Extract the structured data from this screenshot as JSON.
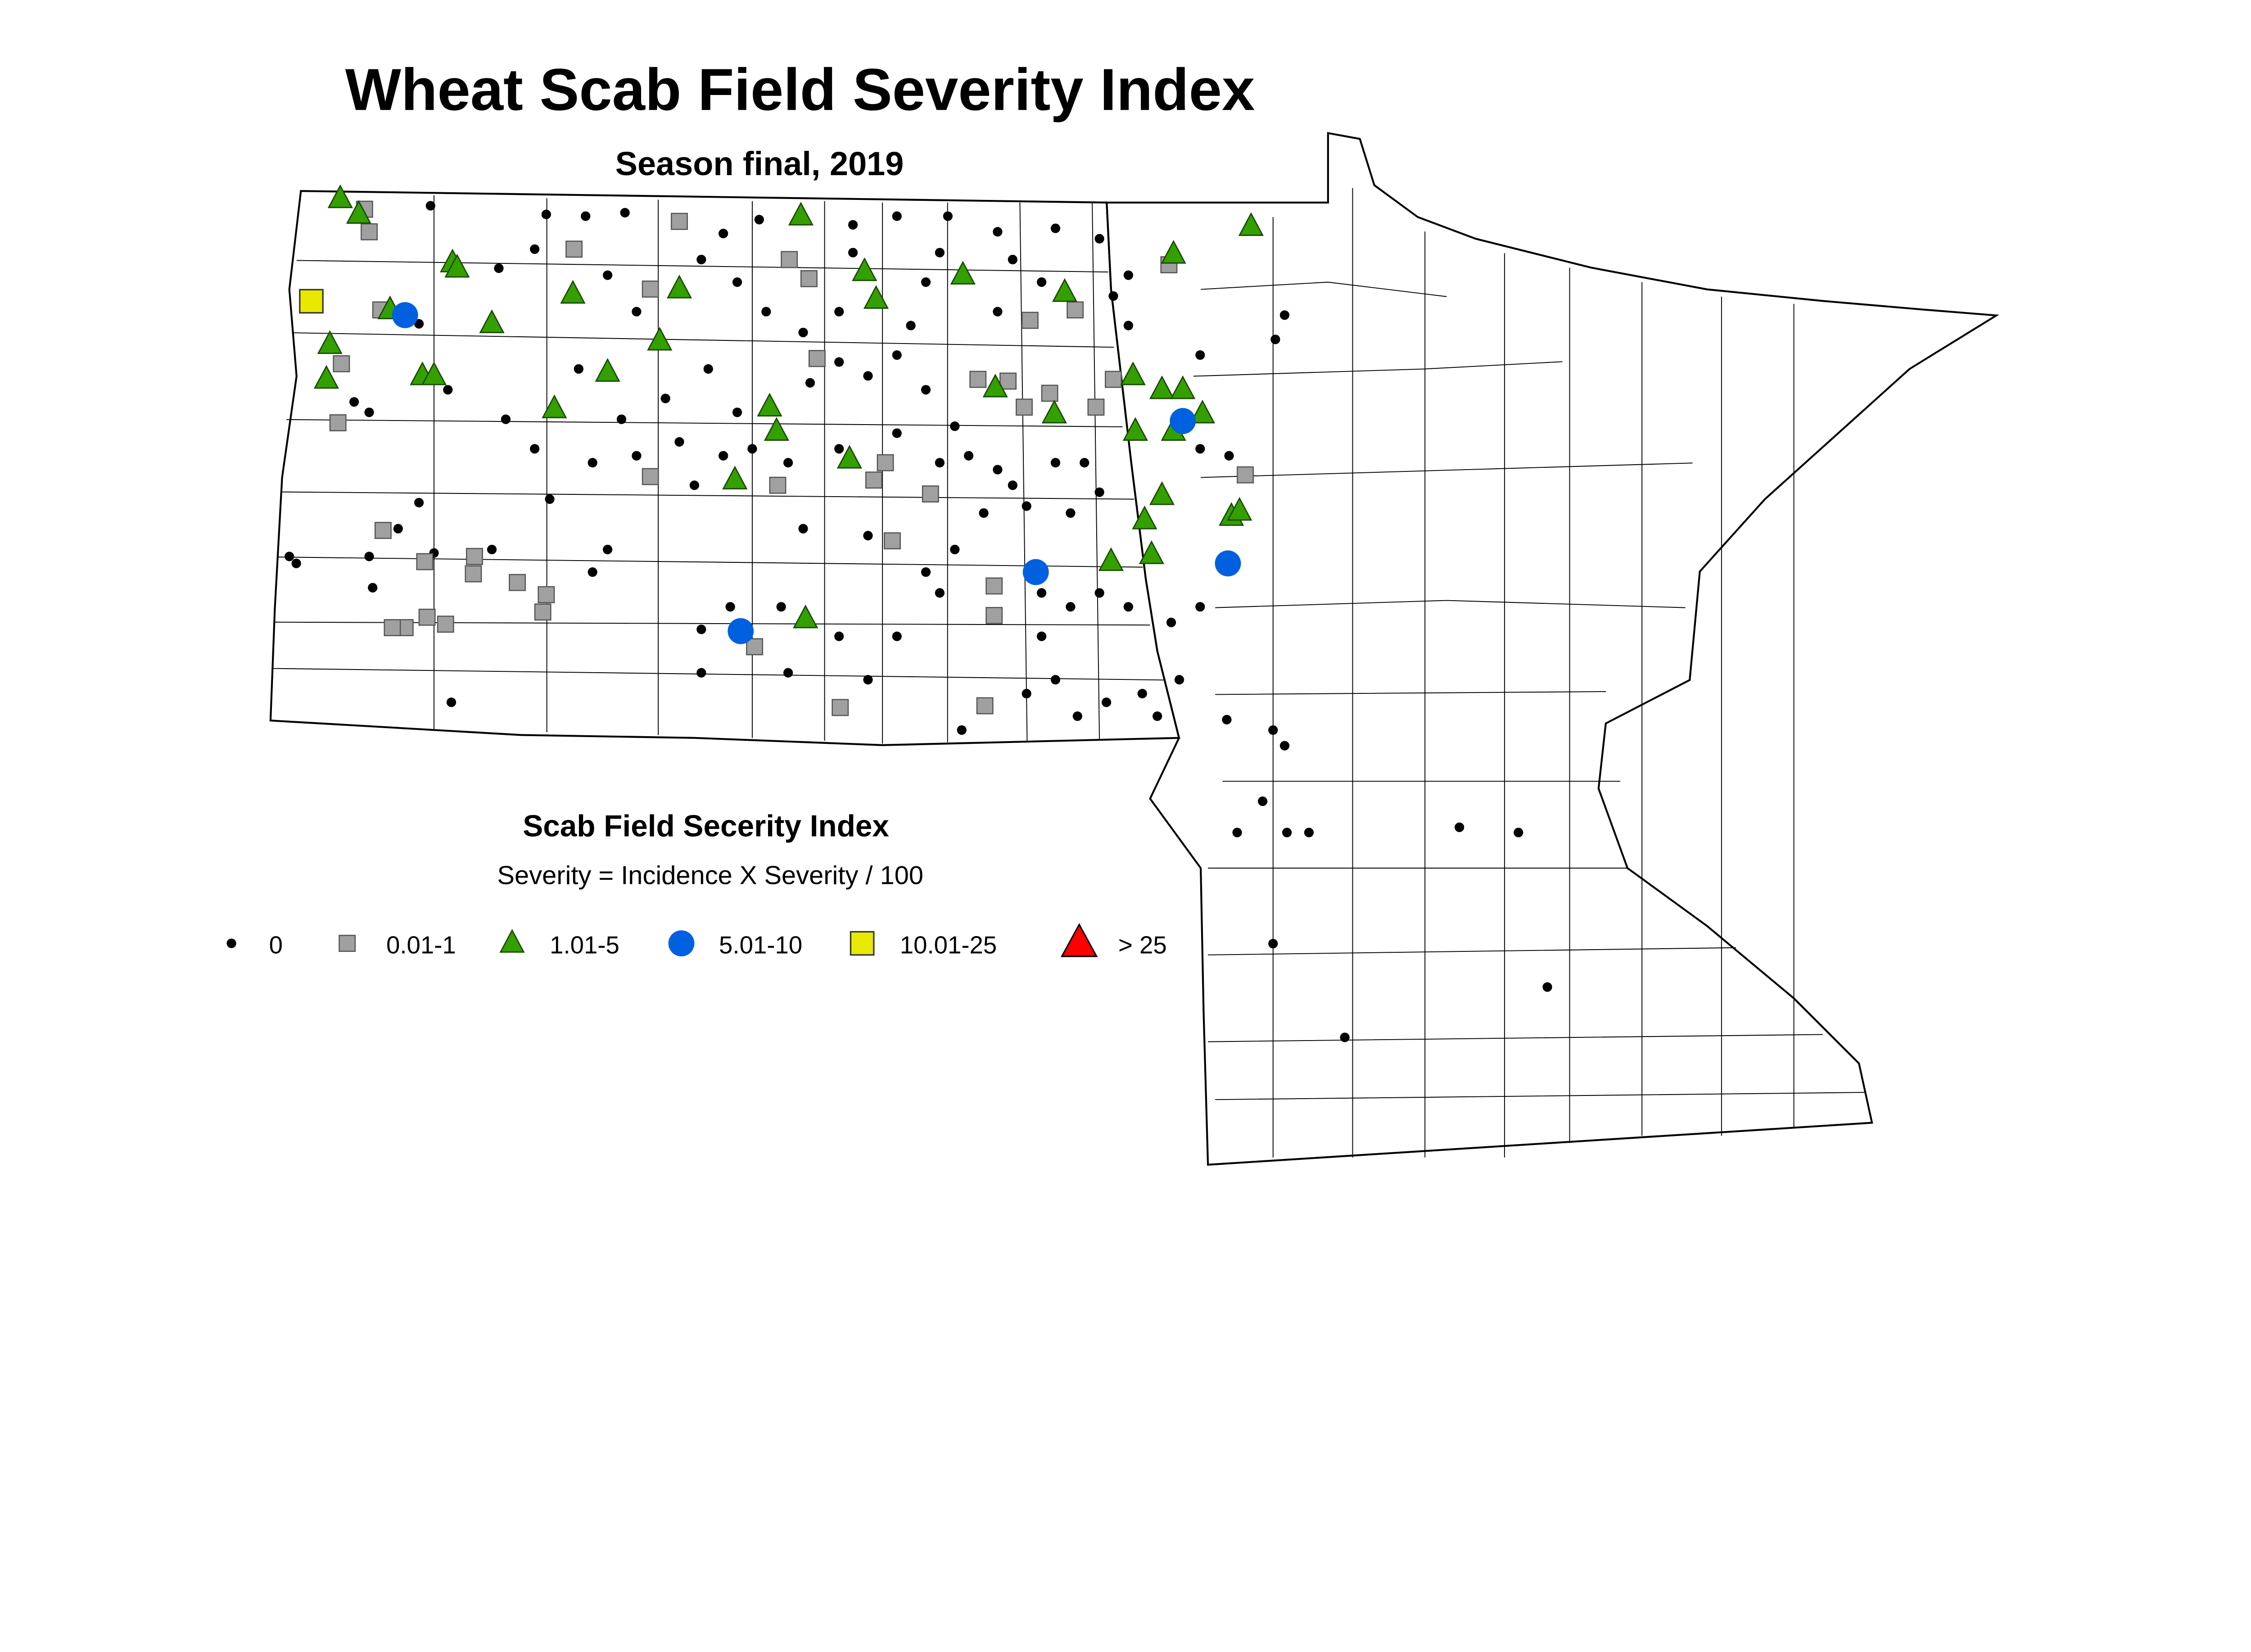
{
  "title": "Wheat Scab Field Severity Index",
  "subtitle": "Season final, 2019",
  "legend": {
    "title": "Scab Field Secerity Index",
    "formula": "Severity = Incidence X Severity / 100",
    "classes": [
      {
        "key": "c0",
        "label": "0",
        "shape": "dot",
        "color": "#000000"
      },
      {
        "key": "c1",
        "label": "0.01-1",
        "shape": "square",
        "color": "#a0a0a0"
      },
      {
        "key": "c2",
        "label": "1.01-5",
        "shape": "triangle",
        "color": "#33a000"
      },
      {
        "key": "c3",
        "label": "5.01-10",
        "shape": "circle",
        "color": "#0060e0"
      },
      {
        "key": "c4",
        "label": "10.01-25",
        "shape": "square-large",
        "color": "#e8e800"
      },
      {
        "key": "c5",
        "label": "> 25",
        "shape": "triangle-large",
        "color": "#ff0000"
      }
    ]
  },
  "chart_data": {
    "type": "scatter",
    "coordinate_system": "longitude/latitude",
    "points": {
      "c3": [
        [
          -103.0,
          48.31
        ],
        [
          -96.28,
          47.7
        ],
        [
          -97.55,
          46.83
        ],
        [
          -95.89,
          46.88
        ],
        [
          -100.1,
          46.49
        ]
      ],
      "c4": [
        [
          -103.81,
          48.39
        ]
      ],
      "c5": [],
      "c2": [
        [
          -103.56,
          48.98
        ],
        [
          -103.4,
          48.89
        ],
        [
          -102.59,
          48.61
        ],
        [
          -102.55,
          48.58
        ],
        [
          -103.13,
          48.34
        ],
        [
          -102.25,
          48.26
        ],
        [
          -103.65,
          48.14
        ],
        [
          -103.68,
          47.94
        ],
        [
          -102.85,
          47.96
        ],
        [
          -102.75,
          47.96
        ],
        [
          -101.55,
          48.43
        ],
        [
          -100.63,
          48.46
        ],
        [
          -100.8,
          48.16
        ],
        [
          -101.25,
          47.98
        ],
        [
          -101.71,
          47.77
        ],
        [
          -99.58,
          48.88
        ],
        [
          -99.03,
          48.56
        ],
        [
          -98.93,
          48.4
        ],
        [
          -98.18,
          48.54
        ],
        [
          -97.3,
          48.44
        ],
        [
          -99.85,
          47.78
        ],
        [
          -99.79,
          47.64
        ],
        [
          -100.15,
          47.36
        ],
        [
          -99.16,
          47.48
        ],
        [
          -97.9,
          47.89
        ],
        [
          -97.39,
          47.74
        ],
        [
          -96.71,
          47.96
        ],
        [
          -96.46,
          47.88
        ],
        [
          -96.28,
          47.88
        ],
        [
          -96.69,
          47.64
        ],
        [
          -96.36,
          47.64
        ],
        [
          -96.11,
          47.74
        ],
        [
          -95.69,
          48.82
        ],
        [
          -96.36,
          48.66
        ],
        [
          -96.61,
          47.13
        ],
        [
          -96.46,
          47.27
        ],
        [
          -95.86,
          47.15
        ],
        [
          -95.79,
          47.18
        ],
        [
          -96.9,
          46.89
        ],
        [
          -96.55,
          46.93
        ],
        [
          -99.54,
          46.56
        ]
      ],
      "c1": [
        [
          -103.35,
          48.92
        ],
        [
          -103.31,
          48.79
        ],
        [
          -100.63,
          48.85
        ],
        [
          -101.54,
          48.69
        ],
        [
          -99.68,
          48.63
        ],
        [
          -99.51,
          48.52
        ],
        [
          -103.21,
          48.34
        ],
        [
          -103.55,
          48.03
        ],
        [
          -103.58,
          47.69
        ],
        [
          -100.88,
          48.46
        ],
        [
          -99.44,
          48.06
        ],
        [
          -98.05,
          47.94
        ],
        [
          -97.79,
          47.93
        ],
        [
          -97.6,
          48.28
        ],
        [
          -97.21,
          48.34
        ],
        [
          -97.43,
          47.86
        ],
        [
          -97.03,
          47.78
        ],
        [
          -96.88,
          47.94
        ],
        [
          -97.65,
          47.78
        ],
        [
          -98.85,
          47.46
        ],
        [
          -98.95,
          47.36
        ],
        [
          -99.78,
          47.33
        ],
        [
          -100.88,
          47.38
        ],
        [
          -98.46,
          47.28
        ],
        [
          -98.79,
          47.01
        ],
        [
          -103.19,
          47.07
        ],
        [
          -102.83,
          46.89
        ],
        [
          -102.4,
          46.92
        ],
        [
          -102.41,
          46.82
        ],
        [
          -102.03,
          46.77
        ],
        [
          -101.78,
          46.7
        ],
        [
          -101.81,
          46.6
        ],
        [
          -102.81,
          46.57
        ],
        [
          -102.65,
          46.53
        ],
        [
          -103.0,
          46.51
        ],
        [
          -103.11,
          46.51
        ],
        [
          -97.91,
          46.75
        ],
        [
          -97.91,
          46.58
        ],
        [
          -99.98,
          46.4
        ],
        [
          -99.24,
          46.05
        ],
        [
          -97.99,
          46.06
        ],
        [
          -95.74,
          47.39
        ],
        [
          -96.4,
          48.6
        ]
      ],
      "c0": [
        [
          -102.78,
          48.94
        ],
        [
          -101.78,
          48.89
        ],
        [
          -101.44,
          48.88
        ],
        [
          -101.1,
          48.9
        ],
        [
          -100.25,
          48.78
        ],
        [
          -99.94,
          48.86
        ],
        [
          -99.13,
          48.83
        ],
        [
          -98.75,
          48.88
        ],
        [
          -98.31,
          48.88
        ],
        [
          -97.88,
          48.79
        ],
        [
          -97.38,
          48.81
        ],
        [
          -97.0,
          48.75
        ],
        [
          -96.75,
          48.54
        ],
        [
          -102.19,
          48.58
        ],
        [
          -101.88,
          48.69
        ],
        [
          -101.25,
          48.54
        ],
        [
          -101.0,
          48.33
        ],
        [
          -100.44,
          48.63
        ],
        [
          -100.13,
          48.5
        ],
        [
          -99.88,
          48.33
        ],
        [
          -99.56,
          48.21
        ],
        [
          -99.25,
          48.33
        ],
        [
          -98.63,
          48.25
        ],
        [
          -98.38,
          48.67
        ],
        [
          -97.88,
          48.33
        ],
        [
          -97.5,
          48.5
        ],
        [
          -101.5,
          48.0
        ],
        [
          -101.13,
          47.71
        ],
        [
          -100.75,
          47.83
        ],
        [
          -100.38,
          48.0
        ],
        [
          -100.13,
          47.75
        ],
        [
          -100.25,
          47.5
        ],
        [
          -100.5,
          47.33
        ],
        [
          -100.63,
          47.58
        ],
        [
          -101.0,
          47.5
        ],
        [
          -101.38,
          47.46
        ],
        [
          -99.5,
          47.92
        ],
        [
          -99.25,
          48.04
        ],
        [
          -99.0,
          47.96
        ],
        [
          -98.75,
          48.08
        ],
        [
          -98.5,
          47.88
        ],
        [
          -98.25,
          47.67
        ],
        [
          -98.13,
          47.5
        ],
        [
          -97.88,
          47.42
        ],
        [
          -97.75,
          47.33
        ],
        [
          -97.63,
          47.21
        ],
        [
          -97.38,
          47.46
        ],
        [
          -97.13,
          47.46
        ],
        [
          -97.0,
          47.29
        ],
        [
          -97.25,
          47.17
        ],
        [
          -98.0,
          47.17
        ],
        [
          -98.25,
          46.96
        ],
        [
          -98.5,
          46.83
        ],
        [
          -98.38,
          46.71
        ],
        [
          -97.5,
          46.71
        ],
        [
          -97.25,
          46.63
        ],
        [
          -97.0,
          46.71
        ],
        [
          -96.75,
          46.63
        ],
        [
          -96.38,
          46.54
        ],
        [
          -96.13,
          46.63
        ],
        [
          -97.5,
          46.46
        ],
        [
          -97.38,
          46.21
        ],
        [
          -97.63,
          46.13
        ],
        [
          -97.19,
          46.0
        ],
        [
          -96.94,
          46.08
        ],
        [
          -96.63,
          46.13
        ],
        [
          -96.5,
          46.0
        ],
        [
          -96.31,
          46.21
        ],
        [
          -98.19,
          45.92
        ],
        [
          -99.0,
          46.21
        ],
        [
          -98.75,
          46.46
        ],
        [
          -99.25,
          46.46
        ],
        [
          -99.69,
          46.25
        ],
        [
          -99.75,
          46.63
        ],
        [
          -100.19,
          46.63
        ],
        [
          -100.44,
          46.5
        ],
        [
          -100.44,
          46.25
        ],
        [
          -99.56,
          47.08
        ],
        [
          -99.0,
          47.04
        ],
        [
          -99.25,
          47.54
        ],
        [
          -98.75,
          47.63
        ],
        [
          -102.88,
          47.23
        ],
        [
          -103.06,
          47.08
        ],
        [
          -103.31,
          46.92
        ],
        [
          -102.75,
          46.94
        ],
        [
          -102.25,
          46.96
        ],
        [
          -101.75,
          47.25
        ],
        [
          -101.25,
          46.96
        ],
        [
          -101.38,
          46.83
        ],
        [
          -104.0,
          46.92
        ],
        [
          -103.94,
          46.88
        ],
        [
          -103.28,
          46.74
        ],
        [
          -102.6,
          46.08
        ],
        [
          -103.44,
          47.81
        ],
        [
          -103.31,
          47.75
        ],
        [
          -102.88,
          48.26
        ],
        [
          -102.63,
          47.88
        ],
        [
          -102.13,
          47.71
        ],
        [
          -101.88,
          47.54
        ],
        [
          -96.13,
          48.08
        ],
        [
          -95.48,
          48.17
        ],
        [
          -95.4,
          48.31
        ],
        [
          -96.75,
          48.25
        ],
        [
          -96.88,
          48.42
        ],
        [
          -95.88,
          47.5
        ],
        [
          -96.13,
          47.54
        ],
        [
          -95.9,
          45.98
        ],
        [
          -95.5,
          45.92
        ],
        [
          -95.4,
          45.83
        ],
        [
          -95.59,
          45.51
        ],
        [
          -95.81,
          45.33
        ],
        [
          -95.38,
          45.33
        ],
        [
          -95.19,
          45.33
        ],
        [
          -93.89,
          45.36
        ],
        [
          -93.38,
          45.33
        ],
        [
          -95.5,
          44.69
        ],
        [
          -93.13,
          44.44
        ],
        [
          -94.88,
          44.15
        ],
        [
          -99.13,
          48.67
        ],
        [
          -98.5,
          48.5
        ],
        [
          -97.75,
          48.63
        ],
        [
          -99.69,
          47.46
        ],
        [
          -100.0,
          47.54
        ],
        [
          -98.38,
          47.46
        ]
      ]
    }
  }
}
